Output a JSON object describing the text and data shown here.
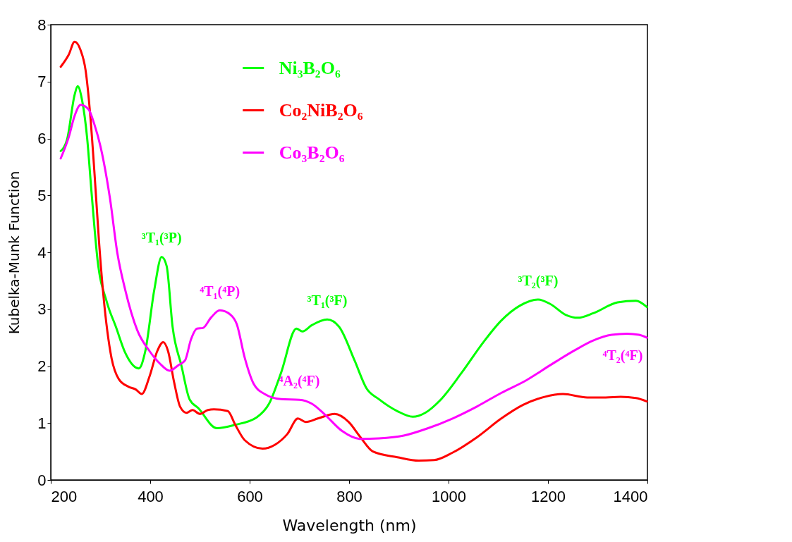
{
  "chart_data": {
    "type": "line",
    "xlabel": "Wavelength (nm)",
    "ylabel": "Kubelka-Munk Function",
    "xlim": [
      200,
      1400
    ],
    "xticks": [
      200,
      400,
      600,
      800,
      1000,
      1200,
      1400
    ],
    "ylim": [
      0,
      8
    ],
    "yticks": [
      0,
      1,
      2,
      3,
      4,
      5,
      6,
      7,
      8
    ],
    "grid": false,
    "legend": "top",
    "line_style": "solid",
    "marker": "none",
    "series": [
      {
        "name": "Ni₃B₂O₆",
        "color": "#00ff00",
        "x": [
          220,
          233,
          248,
          254,
          263,
          273,
          282,
          294,
          313,
          331,
          350,
          377,
          390,
          408,
          423,
          433,
          445,
          463,
          479,
          497,
          534,
          571,
          614,
          639,
          663,
          694,
          706,
          725,
          756,
          780,
          811,
          835,
          860,
          897,
          928,
          953,
          983,
          1026,
          1070,
          1106,
          1143,
          1180,
          1205,
          1236,
          1260,
          1291,
          1340,
          1377,
          1399
        ],
        "values": [
          5.78,
          5.99,
          6.77,
          6.92,
          6.67,
          6.02,
          5.05,
          3.87,
          3.12,
          2.69,
          2.23,
          1.96,
          2.26,
          3.33,
          3.92,
          3.76,
          2.69,
          2.0,
          1.42,
          1.26,
          0.91,
          0.97,
          1.1,
          1.34,
          1.88,
          2.66,
          2.61,
          2.72,
          2.82,
          2.69,
          2.1,
          1.61,
          1.42,
          1.21,
          1.11,
          1.18,
          1.4,
          1.88,
          2.42,
          2.8,
          3.06,
          3.17,
          3.09,
          2.9,
          2.85,
          2.93,
          3.12,
          3.15,
          3.04
        ]
      },
      {
        "name": "Co₂NiB₂O₆",
        "color": "#ff0000",
        "x": [
          220,
          236,
          248,
          260,
          270,
          279,
          288,
          297,
          306,
          322,
          337,
          356,
          371,
          383,
          399,
          414,
          426,
          436,
          448,
          460,
          473,
          485,
          500,
          516,
          528,
          556,
          571,
          590,
          626,
          651,
          676,
          697,
          713,
          737,
          771,
          799,
          823,
          848,
          897,
          940,
          971,
          1008,
          1057,
          1106,
          1150,
          1193,
          1230,
          1279,
          1316,
          1346,
          1377,
          1399
        ],
        "values": [
          7.26,
          7.47,
          7.7,
          7.55,
          7.2,
          6.45,
          5.38,
          4.19,
          3.23,
          2.15,
          1.77,
          1.64,
          1.59,
          1.51,
          1.83,
          2.26,
          2.42,
          2.26,
          1.72,
          1.29,
          1.18,
          1.23,
          1.16,
          1.23,
          1.24,
          1.21,
          0.97,
          0.7,
          0.55,
          0.62,
          0.81,
          1.08,
          1.02,
          1.08,
          1.16,
          1.02,
          0.75,
          0.5,
          0.4,
          0.34,
          0.35,
          0.48,
          0.75,
          1.08,
          1.32,
          1.46,
          1.51,
          1.45,
          1.45,
          1.46,
          1.44,
          1.38
        ]
      },
      {
        "name": "Co₃B₂O₆",
        "color": "#ff00ff",
        "x": [
          220,
          236,
          248,
          260,
          276,
          288,
          300,
          319,
          334,
          350,
          374,
          399,
          420,
          439,
          457,
          470,
          482,
          494,
          506,
          522,
          540,
          562,
          574,
          590,
          608,
          630,
          663,
          700,
          725,
          750,
          786,
          823,
          860,
          910,
          959,
          1008,
          1057,
          1106,
          1156,
          1205,
          1254,
          1291,
          1328,
          1359,
          1383,
          1399
        ],
        "values": [
          5.65,
          6.02,
          6.4,
          6.59,
          6.51,
          6.24,
          5.86,
          4.95,
          3.98,
          3.33,
          2.63,
          2.26,
          2.04,
          1.92,
          2.02,
          2.1,
          2.47,
          2.66,
          2.67,
          2.85,
          2.98,
          2.9,
          2.74,
          2.15,
          1.69,
          1.51,
          1.42,
          1.41,
          1.34,
          1.16,
          0.86,
          0.72,
          0.73,
          0.78,
          0.91,
          1.08,
          1.29,
          1.53,
          1.75,
          2.02,
          2.28,
          2.45,
          2.55,
          2.57,
          2.55,
          2.5
        ]
      }
    ],
    "annotations": [
      {
        "text": "³T₁(³P)",
        "x": 423,
        "y": 3.92
      },
      {
        "text": "⁴T₁(⁴P)",
        "x": 540,
        "y": 2.98
      },
      {
        "text": "³T₁(³F)",
        "x": 756,
        "y": 2.82
      },
      {
        "text": "⁴A₂(⁴F)",
        "x": 700,
        "y": 1.41
      },
      {
        "text": "³T₂(³F)",
        "x": 1180,
        "y": 3.17
      },
      {
        "text": "⁴T₂(⁴F)",
        "x": 1399,
        "y": 2.5
      }
    ]
  }
}
